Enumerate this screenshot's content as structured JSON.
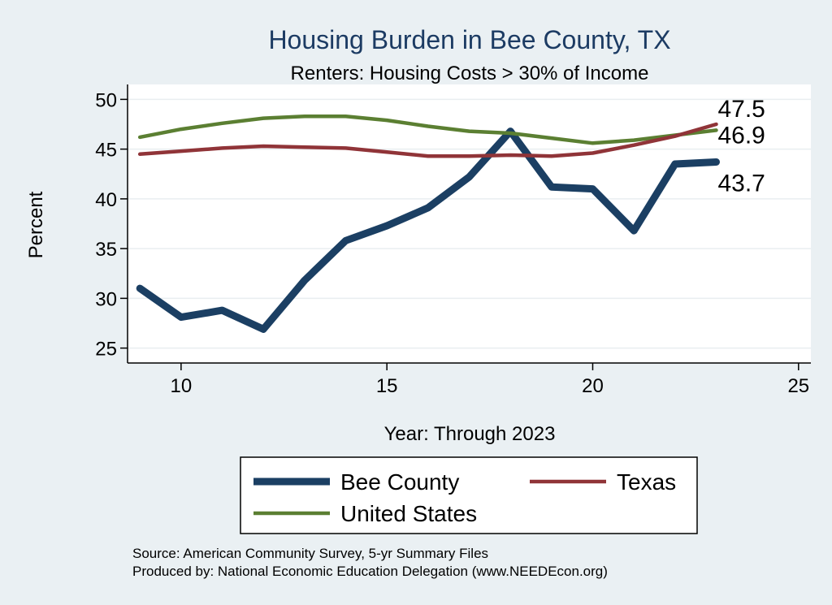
{
  "chart_data": {
    "type": "line",
    "title": "Housing Burden in Bee County, TX",
    "subtitle": "Renters: Housing Costs > 30% of Income",
    "xlabel": "Year: Through 2023",
    "ylabel": "Percent",
    "xlim": [
      8.7,
      25.3
    ],
    "ylim": [
      23.5,
      51.5
    ],
    "xticks": [
      10,
      15,
      20,
      25
    ],
    "yticks": [
      25,
      30,
      35,
      40,
      45,
      50
    ],
    "grid": true,
    "x": [
      9,
      10,
      11,
      12,
      13,
      14,
      15,
      16,
      17,
      18,
      19,
      20,
      21,
      22,
      23
    ],
    "series": [
      {
        "name": "Bee County",
        "color": "#1b3f63",
        "values": [
          31.0,
          28.1,
          28.8,
          26.9,
          31.8,
          35.8,
          37.3,
          39.1,
          42.2,
          46.8,
          41.2,
          41.0,
          36.8,
          43.5,
          43.7
        ],
        "end_label": "43.7"
      },
      {
        "name": "Texas",
        "color": "#903438",
        "values": [
          44.5,
          44.8,
          45.1,
          45.3,
          45.2,
          45.1,
          44.7,
          44.3,
          44.3,
          44.4,
          44.3,
          44.6,
          45.4,
          46.3,
          47.5
        ],
        "end_label": "47.5"
      },
      {
        "name": "United States",
        "color": "#5b7f32",
        "values": [
          46.2,
          47.0,
          47.6,
          48.1,
          48.3,
          48.3,
          47.9,
          47.3,
          46.8,
          46.6,
          46.1,
          45.6,
          45.9,
          46.4,
          46.9
        ],
        "end_label": "46.9"
      }
    ],
    "legend": {
      "position": "bottom",
      "entries": [
        "Bee County",
        "Texas",
        "United States"
      ]
    },
    "source_lines": [
      "Source: American Community Survey, 5-yr Summary Files",
      "Produced by: National Economic Education Delegation (www.NEEDEcon.org)"
    ]
  }
}
